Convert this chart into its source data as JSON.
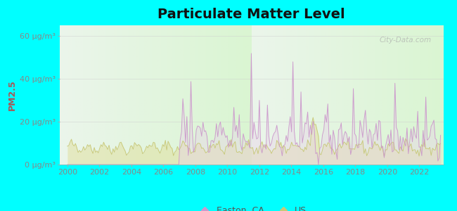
{
  "title": "Particulate Matter Level",
  "ylabel": "PM2.5",
  "xlabel_ticks": [
    2000,
    2002,
    2004,
    2006,
    2008,
    2010,
    2012,
    2014,
    2016,
    2018,
    2020,
    2022
  ],
  "ytick_labels": [
    "0 μg/m³",
    "20 μg/m³",
    "40 μg/m³",
    "60 μg/m³"
  ],
  "ytick_values": [
    0,
    20,
    40,
    60
  ],
  "ylim": [
    0,
    65
  ],
  "xlim": [
    1999.5,
    2023.5
  ],
  "background_color": "#00ffff",
  "plot_bg_top": "#e8f0e8",
  "plot_bg_bottom": "#e0f5d8",
  "easton_color": "#cc99cc",
  "us_color": "#c8c878",
  "easton_fill": "#e8d5e8",
  "us_fill": "#e0e0a0",
  "legend_easton": "Easton, CA",
  "legend_us": "US",
  "watermark": "City-Data.com",
  "title_fontsize": 14,
  "axis_label_fontsize": 9,
  "tick_fontsize": 8,
  "label_color": "#888888",
  "ylabel_color": "#aa5555"
}
